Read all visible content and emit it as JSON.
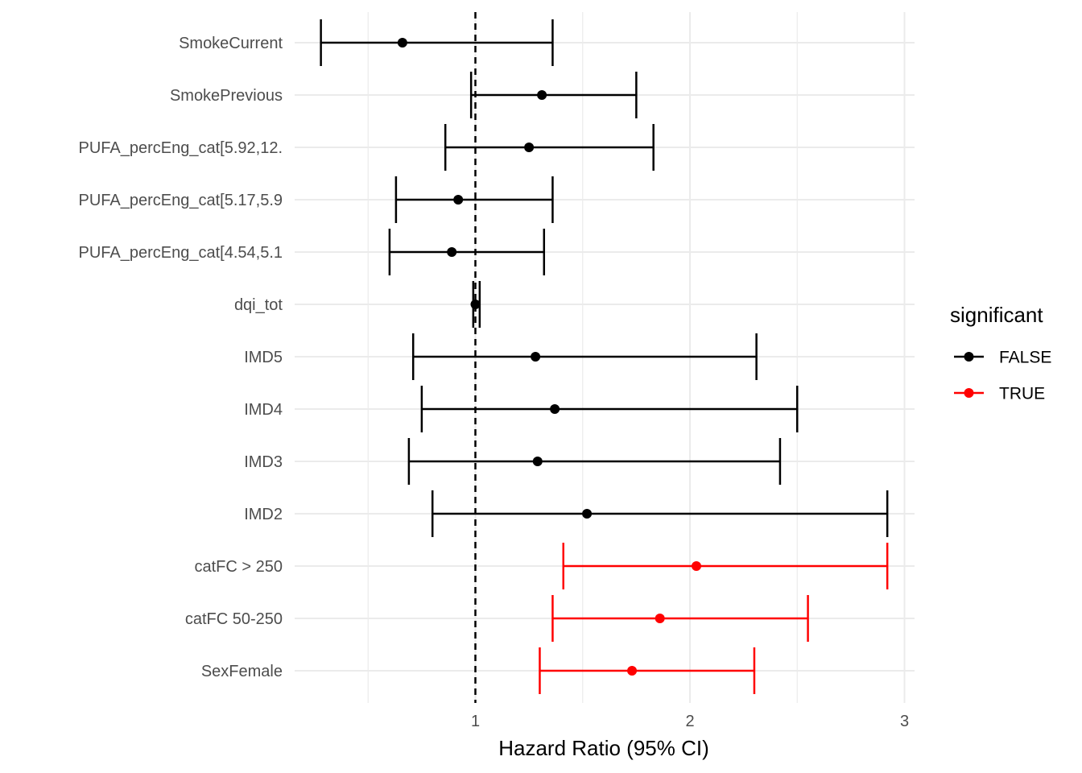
{
  "chart_data": {
    "type": "forest",
    "title": "",
    "xlabel": "Hazard Ratio (95% CI)",
    "ylabel": "",
    "xlim": [
      0.16,
      3.05
    ],
    "xticks": [
      1,
      2,
      3
    ],
    "xtick_labels": [
      "1",
      "2",
      "3"
    ],
    "minor_gridlines": [
      0.5,
      1.5,
      2.5
    ],
    "reference_line": 1,
    "grid": true,
    "legend": {
      "title": "significant",
      "placement": "right",
      "entries": [
        {
          "label": "FALSE",
          "color": "#000000"
        },
        {
          "label": "TRUE",
          "color": "#ff0000"
        }
      ]
    },
    "rows": [
      {
        "label": "SmokeCurrent",
        "hr": 0.66,
        "lower": 0.28,
        "upper": 1.36,
        "significant": false
      },
      {
        "label": "SmokePrevious",
        "hr": 1.31,
        "lower": 0.98,
        "upper": 1.75,
        "significant": false
      },
      {
        "label": "PUFA_percEng_cat[5.92,12.",
        "hr": 1.25,
        "lower": 0.86,
        "upper": 1.83,
        "significant": false
      },
      {
        "label": "PUFA_percEng_cat[5.17,5.9",
        "hr": 0.92,
        "lower": 0.63,
        "upper": 1.36,
        "significant": false
      },
      {
        "label": "PUFA_percEng_cat[4.54,5.1",
        "hr": 0.89,
        "lower": 0.6,
        "upper": 1.32,
        "significant": false
      },
      {
        "label": "dqi_tot",
        "hr": 1.0,
        "lower": 0.99,
        "upper": 1.02,
        "significant": false
      },
      {
        "label": "IMD5",
        "hr": 1.28,
        "lower": 0.71,
        "upper": 2.31,
        "significant": false
      },
      {
        "label": "IMD4",
        "hr": 1.37,
        "lower": 0.75,
        "upper": 2.5,
        "significant": false
      },
      {
        "label": "IMD3",
        "hr": 1.29,
        "lower": 0.69,
        "upper": 2.42,
        "significant": false
      },
      {
        "label": "IMD2",
        "hr": 1.52,
        "lower": 0.8,
        "upper": 2.92,
        "significant": false
      },
      {
        "label": "catFC > 250",
        "hr": 2.03,
        "lower": 1.41,
        "upper": 2.92,
        "significant": true
      },
      {
        "label": "catFC 50-250",
        "hr": 1.86,
        "lower": 1.36,
        "upper": 2.55,
        "significant": true
      },
      {
        "label": "SexFemale",
        "hr": 1.73,
        "lower": 1.3,
        "upper": 2.3,
        "significant": true
      }
    ]
  }
}
